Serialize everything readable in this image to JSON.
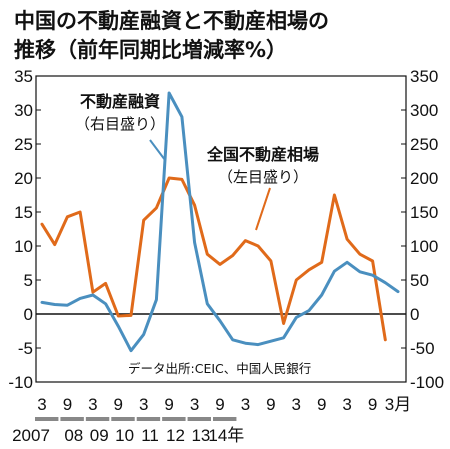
{
  "chart_data": {
    "type": "line",
    "title_line1": "中国の不動産融資と不動産相場の",
    "title_line2": "推移（前年同期比増減率%）",
    "source": "データ出所:CEIC、中国人民銀行",
    "left_axis": {
      "ticks": [
        "35",
        "30",
        "25",
        "20",
        "15",
        "10",
        "5",
        "0",
        "-5",
        "-10"
      ],
      "range": [
        -10,
        35
      ]
    },
    "right_axis": {
      "ticks": [
        "350",
        "300",
        "250",
        "200",
        "150",
        "100",
        "50",
        "0",
        "-50",
        "-100"
      ],
      "range": [
        -100,
        350
      ]
    },
    "x_month_labels": [
      "3",
      "9",
      "3",
      "9",
      "3",
      "9",
      "3",
      "9",
      "3",
      "9",
      "3",
      "9",
      "3",
      "9",
      "3月"
    ],
    "x_year_labels": [
      "2007",
      "08",
      "09",
      "10",
      "11",
      "12",
      "13",
      "14年"
    ],
    "grid": false,
    "series": [
      {
        "name": "全国不動産相場",
        "name_note": "（左目盛り）",
        "axis": "left",
        "color": "#e06a1a",
        "x": [
          0,
          1,
          2,
          3,
          4,
          5,
          6,
          7,
          8,
          9,
          10,
          11,
          12,
          13,
          14,
          15,
          16,
          17,
          18,
          19,
          20,
          21,
          22,
          23,
          24,
          25,
          26,
          27,
          28
        ],
        "values": [
          13.2,
          10.2,
          14.3,
          15.0,
          3.2,
          4.5,
          -0.3,
          -0.2,
          13.8,
          15.6,
          20.0,
          19.8,
          16.0,
          8.8,
          7.3,
          8.6,
          10.8,
          10.0,
          7.8,
          -1.4,
          5.0,
          6.5,
          7.6,
          17.5,
          11.0,
          8.8,
          7.8,
          -3.8,
          null
        ],
        "label_x": 263,
        "label_y": 160
      },
      {
        "name": "不動産融資",
        "name_note": "（右目盛り）",
        "axis": "right",
        "color": "#4a8fbf",
        "x": [
          0,
          1,
          2,
          3,
          4,
          5,
          6,
          7,
          8,
          9,
          10,
          11,
          12,
          13,
          14,
          15,
          16,
          17,
          18,
          19,
          20,
          21,
          22,
          23,
          24,
          25,
          26,
          27,
          28
        ],
        "values": [
          17,
          14,
          13,
          23,
          28,
          15,
          -18,
          -54,
          -30,
          21,
          325,
          290,
          105,
          15,
          -10,
          -38,
          -43,
          -45,
          -40,
          -35,
          -5,
          5,
          28,
          63,
          76,
          62,
          57,
          46,
          33
        ],
        "label_x": 120,
        "label_y": 107
      }
    ]
  }
}
